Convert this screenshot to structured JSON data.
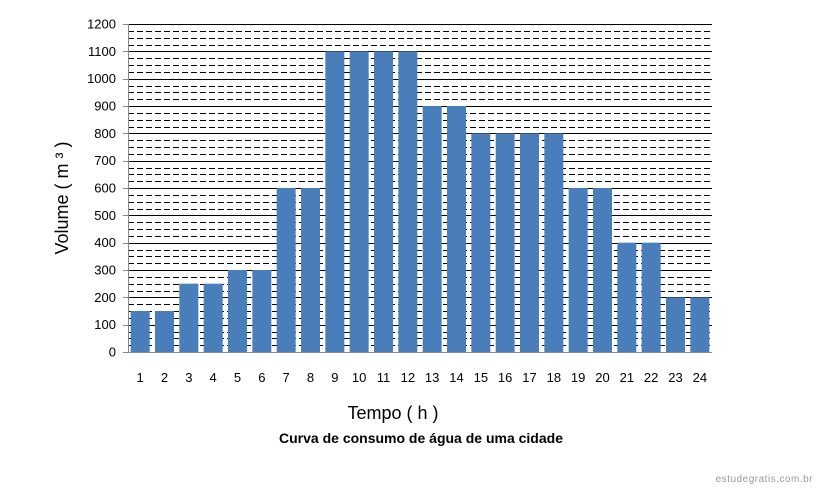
{
  "chart_data": {
    "type": "bar",
    "title": "",
    "caption": "Curva de consumo de água de uma cidade",
    "xlabel": "Tempo ( h )",
    "ylabel": "Volume  ( m ³ )",
    "ylim": [
      0,
      1200
    ],
    "yticks": [
      0,
      100,
      200,
      300,
      400,
      500,
      600,
      700,
      800,
      900,
      1000,
      1100,
      1200
    ],
    "grid": true,
    "legend": "none",
    "bar_color": "#4a7ebb",
    "categories": [
      "1",
      "2",
      "3",
      "4",
      "5",
      "6",
      "7",
      "8",
      "9",
      "10",
      "11",
      "12",
      "13",
      "14",
      "15",
      "16",
      "17",
      "18",
      "19",
      "20",
      "21",
      "22",
      "23",
      "24"
    ],
    "values": [
      150,
      150,
      250,
      250,
      300,
      300,
      600,
      600,
      1100,
      1100,
      1100,
      1100,
      900,
      900,
      800,
      800,
      800,
      800,
      600,
      600,
      400,
      400,
      200,
      200
    ]
  },
  "watermark": "estudegratis.com.br"
}
